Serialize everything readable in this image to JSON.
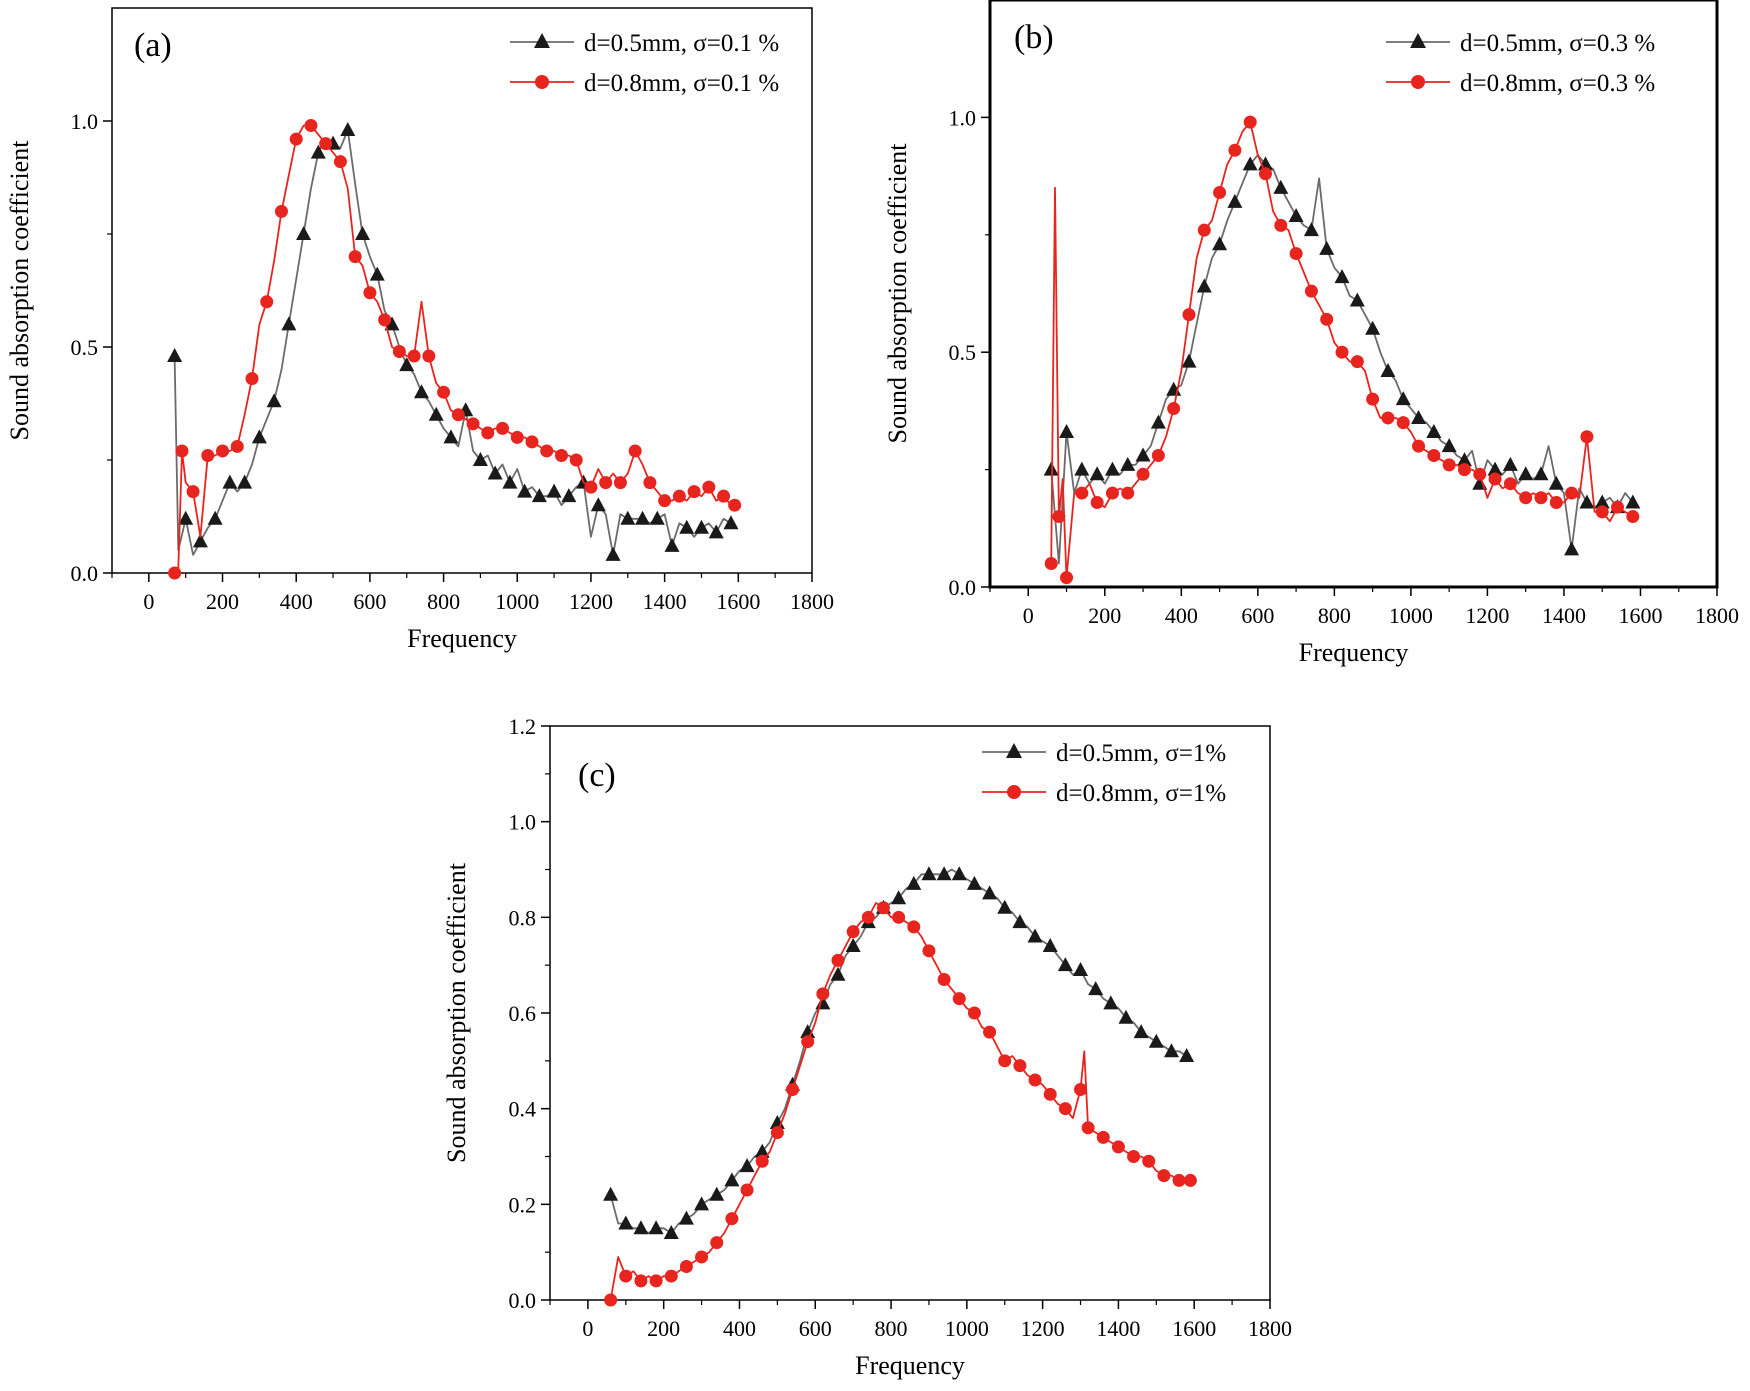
{
  "chart_data": [
    {
      "type": "line",
      "panel": "(a)",
      "xlabel": "Frequency",
      "ylabel": "Sound absorption coefficient",
      "xlim": [
        -100,
        1800
      ],
      "ylim": [
        0.0,
        1.25
      ],
      "xticks": [
        0,
        200,
        400,
        600,
        800,
        1000,
        1200,
        1400,
        1600,
        1800
      ],
      "yticks": [
        0.0,
        0.5,
        1.0
      ],
      "ytick_labels": [
        "0.0",
        "0.5",
        "1.0"
      ],
      "legend": "top-right",
      "series": [
        {
          "name": "d=0.5mm, σ=0.1 %",
          "color": "#6b6b6b",
          "marker_color": "#1a1a1a",
          "marker": "triangle",
          "x": [
            70,
            80,
            100,
            120,
            140,
            160,
            180,
            200,
            220,
            240,
            260,
            280,
            300,
            320,
            340,
            360,
            380,
            400,
            420,
            440,
            460,
            480,
            500,
            520,
            540,
            560,
            580,
            600,
            620,
            640,
            660,
            680,
            700,
            720,
            740,
            760,
            780,
            800,
            820,
            840,
            860,
            880,
            900,
            920,
            940,
            960,
            980,
            1000,
            1020,
            1040,
            1060,
            1080,
            1100,
            1120,
            1140,
            1160,
            1180,
            1200,
            1220,
            1240,
            1260,
            1280,
            1300,
            1320,
            1340,
            1360,
            1380,
            1400,
            1420,
            1440,
            1460,
            1480,
            1500,
            1520,
            1540,
            1560,
            1580,
            1590
          ],
          "y": [
            0.48,
            0.05,
            0.12,
            0.04,
            0.07,
            0.1,
            0.12,
            0.16,
            0.2,
            0.18,
            0.2,
            0.24,
            0.3,
            0.34,
            0.38,
            0.45,
            0.55,
            0.65,
            0.75,
            0.85,
            0.93,
            0.96,
            0.95,
            0.94,
            0.98,
            0.86,
            0.75,
            0.7,
            0.66,
            0.58,
            0.55,
            0.5,
            0.46,
            0.44,
            0.4,
            0.38,
            0.35,
            0.32,
            0.3,
            0.28,
            0.36,
            0.27,
            0.25,
            0.26,
            0.22,
            0.24,
            0.2,
            0.23,
            0.18,
            0.19,
            0.17,
            0.17,
            0.18,
            0.15,
            0.17,
            0.19,
            0.2,
            0.08,
            0.15,
            0.13,
            0.04,
            0.13,
            0.12,
            0.12,
            0.12,
            0.11,
            0.12,
            0.13,
            0.06,
            0.11,
            0.1,
            0.08,
            0.1,
            0.11,
            0.09,
            0.12,
            0.11,
            0.1
          ]
        },
        {
          "name": "d=0.8mm, σ=0.1 %",
          "color": "#e8241e",
          "marker_color": "#e8241e",
          "marker": "circle",
          "x": [
            70,
            80,
            90,
            100,
            120,
            140,
            160,
            180,
            200,
            220,
            240,
            260,
            280,
            300,
            320,
            340,
            360,
            380,
            400,
            420,
            440,
            460,
            480,
            500,
            520,
            540,
            560,
            580,
            600,
            620,
            640,
            660,
            680,
            700,
            720,
            740,
            760,
            780,
            800,
            820,
            840,
            860,
            880,
            900,
            920,
            940,
            960,
            980,
            1000,
            1020,
            1040,
            1060,
            1080,
            1100,
            1120,
            1140,
            1160,
            1180,
            1200,
            1220,
            1240,
            1260,
            1280,
            1300,
            1320,
            1340,
            1360,
            1380,
            1400,
            1420,
            1440,
            1460,
            1480,
            1500,
            1520,
            1540,
            1560,
            1580,
            1590
          ],
          "y": [
            0.0,
            0.01,
            0.27,
            0.2,
            0.18,
            0.08,
            0.26,
            0.26,
            0.27,
            0.27,
            0.28,
            0.35,
            0.43,
            0.55,
            0.6,
            0.69,
            0.8,
            0.88,
            0.96,
            0.99,
            0.99,
            0.97,
            0.95,
            0.93,
            0.91,
            0.85,
            0.7,
            0.68,
            0.62,
            0.6,
            0.56,
            0.5,
            0.49,
            0.48,
            0.48,
            0.6,
            0.48,
            0.42,
            0.4,
            0.36,
            0.35,
            0.34,
            0.33,
            0.32,
            0.31,
            0.32,
            0.32,
            0.31,
            0.3,
            0.3,
            0.29,
            0.28,
            0.27,
            0.27,
            0.26,
            0.26,
            0.25,
            0.2,
            0.19,
            0.23,
            0.2,
            0.22,
            0.2,
            0.22,
            0.27,
            0.24,
            0.2,
            0.18,
            0.16,
            0.16,
            0.17,
            0.16,
            0.18,
            0.17,
            0.19,
            0.16,
            0.17,
            0.15,
            0.15
          ]
        }
      ]
    },
    {
      "type": "line",
      "panel": "(b)",
      "xlabel": "Frequency",
      "ylabel": "Sound absorption coefficient",
      "xlim": [
        -100,
        1800
      ],
      "ylim": [
        0.0,
        1.25
      ],
      "xticks": [
        0,
        200,
        400,
        600,
        800,
        1000,
        1200,
        1400,
        1600,
        1800
      ],
      "yticks": [
        0.0,
        0.5,
        1.0
      ],
      "ytick_labels": [
        "0.0",
        "0.5",
        "1.0"
      ],
      "legend": "top-right",
      "series": [
        {
          "name": "d=0.5mm, σ=0.3 %",
          "color": "#6b6b6b",
          "marker_color": "#1a1a1a",
          "marker": "triangle",
          "x": [
            60,
            80,
            100,
            120,
            140,
            160,
            180,
            200,
            220,
            240,
            260,
            280,
            300,
            320,
            340,
            360,
            380,
            400,
            420,
            440,
            460,
            480,
            500,
            520,
            540,
            560,
            580,
            600,
            620,
            640,
            660,
            680,
            700,
            720,
            740,
            760,
            780,
            800,
            820,
            840,
            860,
            880,
            900,
            920,
            940,
            960,
            980,
            1000,
            1020,
            1040,
            1060,
            1080,
            1100,
            1120,
            1140,
            1160,
            1180,
            1200,
            1220,
            1240,
            1260,
            1280,
            1300,
            1320,
            1340,
            1360,
            1380,
            1400,
            1420,
            1440,
            1460,
            1480,
            1500,
            1520,
            1540,
            1560,
            1580,
            1590
          ],
          "y": [
            0.25,
            0.05,
            0.33,
            0.2,
            0.25,
            0.22,
            0.24,
            0.22,
            0.25,
            0.24,
            0.26,
            0.26,
            0.28,
            0.3,
            0.35,
            0.4,
            0.42,
            0.43,
            0.48,
            0.56,
            0.64,
            0.7,
            0.73,
            0.78,
            0.82,
            0.86,
            0.9,
            0.92,
            0.9,
            0.89,
            0.85,
            0.82,
            0.79,
            0.77,
            0.76,
            0.87,
            0.72,
            0.68,
            0.66,
            0.62,
            0.61,
            0.58,
            0.55,
            0.5,
            0.46,
            0.44,
            0.4,
            0.38,
            0.36,
            0.35,
            0.33,
            0.31,
            0.3,
            0.28,
            0.27,
            0.29,
            0.22,
            0.27,
            0.25,
            0.24,
            0.26,
            0.22,
            0.24,
            0.23,
            0.24,
            0.3,
            0.22,
            0.2,
            0.08,
            0.21,
            0.18,
            0.17,
            0.18,
            0.19,
            0.17,
            0.2,
            0.18,
            0.17
          ]
        },
        {
          "name": "d=0.8mm, σ=0.3 %",
          "color": "#e8241e",
          "marker_color": "#e8241e",
          "marker": "circle",
          "x": [
            60,
            70,
            80,
            90,
            100,
            120,
            140,
            160,
            180,
            200,
            220,
            240,
            260,
            280,
            300,
            320,
            340,
            360,
            380,
            400,
            420,
            440,
            460,
            480,
            500,
            520,
            540,
            560,
            580,
            600,
            620,
            640,
            660,
            680,
            700,
            720,
            740,
            760,
            780,
            800,
            820,
            840,
            860,
            880,
            900,
            920,
            940,
            960,
            980,
            1000,
            1020,
            1040,
            1060,
            1080,
            1100,
            1120,
            1140,
            1160,
            1180,
            1200,
            1220,
            1240,
            1260,
            1280,
            1300,
            1320,
            1340,
            1360,
            1380,
            1400,
            1420,
            1440,
            1460,
            1480,
            1500,
            1520,
            1540,
            1560,
            1580,
            1590
          ],
          "y": [
            0.05,
            0.85,
            0.15,
            0.23,
            0.02,
            0.2,
            0.2,
            0.22,
            0.18,
            0.17,
            0.2,
            0.21,
            0.2,
            0.22,
            0.24,
            0.26,
            0.28,
            0.32,
            0.38,
            0.46,
            0.58,
            0.7,
            0.76,
            0.78,
            0.84,
            0.9,
            0.93,
            0.97,
            0.99,
            0.92,
            0.88,
            0.8,
            0.77,
            0.76,
            0.71,
            0.67,
            0.63,
            0.6,
            0.57,
            0.52,
            0.5,
            0.48,
            0.48,
            0.46,
            0.4,
            0.36,
            0.36,
            0.36,
            0.35,
            0.33,
            0.3,
            0.29,
            0.28,
            0.27,
            0.26,
            0.26,
            0.25,
            0.25,
            0.24,
            0.19,
            0.23,
            0.21,
            0.22,
            0.2,
            0.19,
            0.2,
            0.19,
            0.2,
            0.18,
            0.18,
            0.2,
            0.19,
            0.32,
            0.16,
            0.16,
            0.14,
            0.17,
            0.16,
            0.15,
            0.14
          ]
        }
      ]
    },
    {
      "type": "line",
      "panel": "(c)",
      "xlabel": "Frequency",
      "ylabel": "Sound absorption coefficient",
      "xlim": [
        -100,
        1800
      ],
      "ylim": [
        0.0,
        1.2
      ],
      "xticks": [
        0,
        200,
        400,
        600,
        800,
        1000,
        1200,
        1400,
        1600,
        1800
      ],
      "yticks": [
        0.0,
        0.2,
        0.4,
        0.6,
        0.8,
        1.0,
        1.2
      ],
      "ytick_labels": [
        "0.0",
        "0.2",
        "0.4",
        "0.6",
        "0.8",
        "1.0",
        "1.2"
      ],
      "legend": "top-right",
      "series": [
        {
          "name": "d=0.5mm, σ=1%",
          "color": "#6b6b6b",
          "marker_color": "#1a1a1a",
          "marker": "triangle",
          "x": [
            60,
            80,
            100,
            120,
            140,
            160,
            180,
            200,
            220,
            240,
            260,
            280,
            300,
            320,
            340,
            360,
            380,
            400,
            420,
            440,
            460,
            480,
            500,
            520,
            540,
            560,
            580,
            600,
            620,
            640,
            660,
            680,
            700,
            720,
            740,
            760,
            780,
            800,
            820,
            840,
            860,
            880,
            900,
            920,
            940,
            960,
            980,
            1000,
            1020,
            1040,
            1060,
            1080,
            1100,
            1120,
            1140,
            1160,
            1180,
            1200,
            1220,
            1240,
            1260,
            1280,
            1300,
            1320,
            1340,
            1360,
            1380,
            1400,
            1420,
            1440,
            1460,
            1480,
            1500,
            1520,
            1540,
            1560,
            1580,
            1590
          ],
          "y": [
            0.22,
            0.16,
            0.16,
            0.15,
            0.15,
            0.14,
            0.15,
            0.15,
            0.14,
            0.16,
            0.17,
            0.18,
            0.2,
            0.21,
            0.22,
            0.23,
            0.25,
            0.27,
            0.28,
            0.3,
            0.31,
            0.33,
            0.37,
            0.4,
            0.45,
            0.5,
            0.56,
            0.6,
            0.62,
            0.66,
            0.68,
            0.72,
            0.74,
            0.76,
            0.79,
            0.8,
            0.82,
            0.83,
            0.84,
            0.86,
            0.87,
            0.89,
            0.89,
            0.89,
            0.89,
            0.9,
            0.89,
            0.88,
            0.87,
            0.86,
            0.85,
            0.84,
            0.82,
            0.81,
            0.79,
            0.78,
            0.76,
            0.75,
            0.74,
            0.72,
            0.7,
            0.68,
            0.69,
            0.66,
            0.65,
            0.63,
            0.62,
            0.61,
            0.59,
            0.58,
            0.56,
            0.55,
            0.54,
            0.53,
            0.52,
            0.52,
            0.51,
            0.5
          ]
        },
        {
          "name": "d=0.8mm, σ=1%",
          "color": "#e8241e",
          "marker_color": "#e8241e",
          "marker": "circle",
          "x": [
            60,
            80,
            100,
            120,
            140,
            160,
            180,
            200,
            220,
            240,
            260,
            280,
            300,
            320,
            340,
            360,
            380,
            400,
            420,
            440,
            460,
            480,
            500,
            520,
            540,
            560,
            580,
            600,
            620,
            640,
            660,
            680,
            700,
            720,
            740,
            760,
            780,
            800,
            820,
            840,
            860,
            880,
            900,
            920,
            940,
            960,
            980,
            1000,
            1020,
            1040,
            1060,
            1080,
            1100,
            1120,
            1140,
            1160,
            1180,
            1200,
            1220,
            1240,
            1260,
            1280,
            1300,
            1310,
            1320,
            1340,
            1360,
            1380,
            1400,
            1420,
            1440,
            1460,
            1480,
            1500,
            1520,
            1540,
            1560,
            1580,
            1590
          ],
          "y": [
            0.0,
            0.09,
            0.05,
            0.06,
            0.04,
            0.05,
            0.04,
            0.05,
            0.05,
            0.06,
            0.07,
            0.08,
            0.09,
            0.1,
            0.12,
            0.14,
            0.17,
            0.2,
            0.23,
            0.26,
            0.29,
            0.31,
            0.35,
            0.39,
            0.44,
            0.49,
            0.54,
            0.58,
            0.64,
            0.68,
            0.71,
            0.74,
            0.77,
            0.79,
            0.8,
            0.83,
            0.82,
            0.8,
            0.8,
            0.79,
            0.78,
            0.76,
            0.73,
            0.7,
            0.67,
            0.65,
            0.63,
            0.61,
            0.6,
            0.57,
            0.56,
            0.53,
            0.5,
            0.51,
            0.49,
            0.47,
            0.46,
            0.45,
            0.43,
            0.41,
            0.4,
            0.38,
            0.44,
            0.52,
            0.36,
            0.35,
            0.34,
            0.33,
            0.32,
            0.31,
            0.3,
            0.3,
            0.29,
            0.27,
            0.26,
            0.26,
            0.25,
            0.25,
            0.25
          ]
        }
      ]
    }
  ]
}
